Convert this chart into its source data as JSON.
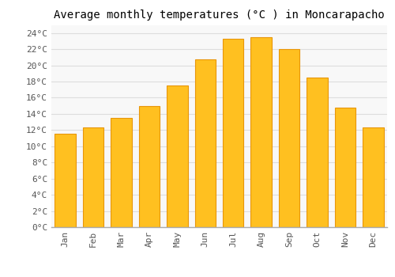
{
  "title": "Average monthly temperatures (°C ) in Moncarapacho",
  "months": [
    "Jan",
    "Feb",
    "Mar",
    "Apr",
    "May",
    "Jun",
    "Jul",
    "Aug",
    "Sep",
    "Oct",
    "Nov",
    "Dec"
  ],
  "values": [
    11.5,
    12.3,
    13.5,
    15.0,
    17.5,
    20.7,
    23.3,
    23.5,
    22.0,
    18.5,
    14.8,
    12.3
  ],
  "bar_color": "#FFC020",
  "bar_edge_color": "#E8960A",
  "background_color": "#FFFFFF",
  "plot_bg_color": "#F8F8F8",
  "grid_color": "#DDDDDD",
  "ylim": [
    0,
    25
  ],
  "ytick_step": 2,
  "title_fontsize": 10,
  "tick_fontsize": 8,
  "font_family": "monospace"
}
